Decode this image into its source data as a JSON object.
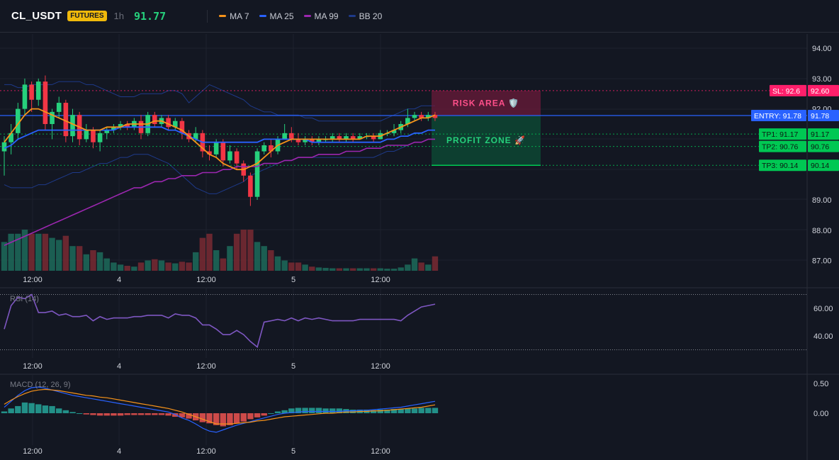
{
  "header": {
    "symbol": "CL_USDT",
    "badge": "FUTURES",
    "timeframe": "1h",
    "last_price": "91.77",
    "legend": [
      {
        "label": "MA 7",
        "color": "#f7931a"
      },
      {
        "label": "MA 25",
        "color": "#2962ff"
      },
      {
        "label": "MA 99",
        "color": "#9c27b0"
      },
      {
        "label": "BB 20",
        "color": "#1e3a8a"
      }
    ]
  },
  "colors": {
    "bg": "#131722",
    "up": "#26d07c",
    "down": "#f23645",
    "grid": "#1e222d",
    "sl": "#ff1f6b",
    "entry": "#2962ff",
    "tp": "#00c853",
    "rsi": "#7e57c2",
    "macd": "#2962ff",
    "signal": "#f7931a"
  },
  "levels": {
    "sl": {
      "value": 92.6,
      "tag": "SL: 92.6",
      "axis": "92.60"
    },
    "entry": {
      "value": 91.78,
      "tag": "ENTRY: 91.78",
      "axis": "91.78"
    },
    "tp": [
      {
        "value": 91.17,
        "tag": "TP1: 91.17",
        "axis": "91.17"
      },
      {
        "value": 90.76,
        "tag": "TP2: 90.76",
        "axis": "90.76"
      },
      {
        "value": 90.14,
        "tag": "TP3: 90.14",
        "axis": "90.14"
      }
    ]
  },
  "zones": {
    "risk_label": "RISK AREA 🛡️",
    "profit_label": "PROFIT ZONE 🚀"
  },
  "rsi": {
    "title": "RSI (14)",
    "ticks": [
      "60.00",
      "40.00"
    ]
  },
  "macd": {
    "title": "MACD (12, 26, 9)",
    "ticks": [
      "0.50",
      "0.00"
    ]
  },
  "chart_data": {
    "type": "candlestick",
    "time_ticks": [
      "12:00",
      "4",
      "12:00",
      "5",
      "12:00"
    ],
    "price_ticks": [
      "94.00",
      "93.00",
      "92.00",
      "89.00",
      "88.00",
      "87.00"
    ],
    "ylim": [
      86.8,
      94.3
    ],
    "candles": [
      [
        90.6,
        90.9,
        89.8,
        91.1
      ],
      [
        90.9,
        91.2,
        90.5,
        91.5
      ],
      [
        91.2,
        92.0,
        91.0,
        92.2
      ],
      [
        92.0,
        92.8,
        91.8,
        93.0
      ],
      [
        92.8,
        92.3,
        91.9,
        92.9
      ],
      [
        92.3,
        92.9,
        92.1,
        93.0
      ],
      [
        92.9,
        91.5,
        91.3,
        93.1
      ],
      [
        91.5,
        91.9,
        91.0,
        92.0
      ],
      [
        91.9,
        92.2,
        91.7,
        92.4
      ],
      [
        92.2,
        91.1,
        90.9,
        92.3
      ],
      [
        91.1,
        91.8,
        90.9,
        92.0
      ],
      [
        91.8,
        91.0,
        90.8,
        91.9
      ],
      [
        91.0,
        91.3,
        90.9,
        91.5
      ],
      [
        91.3,
        90.9,
        90.7,
        91.4
      ],
      [
        90.9,
        91.2,
        90.6,
        91.3
      ],
      [
        91.2,
        91.3,
        91.0,
        91.4
      ],
      [
        91.3,
        91.4,
        91.2,
        91.5
      ],
      [
        91.4,
        91.5,
        91.3,
        91.6
      ],
      [
        91.5,
        91.4,
        91.3,
        91.6
      ],
      [
        91.4,
        91.6,
        91.3,
        91.7
      ],
      [
        91.6,
        91.2,
        91.0,
        91.8
      ],
      [
        91.2,
        91.8,
        91.1,
        91.9
      ],
      [
        91.8,
        91.5,
        91.4,
        91.9
      ],
      [
        91.5,
        91.7,
        91.4,
        91.8
      ],
      [
        91.7,
        91.4,
        91.3,
        91.8
      ],
      [
        91.4,
        91.6,
        91.3,
        91.7
      ],
      [
        91.6,
        91.2,
        91.0,
        91.7
      ],
      [
        91.2,
        91.0,
        90.9,
        91.3
      ],
      [
        91.0,
        91.2,
        90.9,
        91.4
      ],
      [
        91.2,
        90.6,
        90.4,
        91.3
      ],
      [
        90.6,
        90.5,
        90.3,
        90.8
      ],
      [
        90.5,
        90.9,
        90.4,
        91.0
      ],
      [
        90.9,
        90.3,
        90.1,
        91.0
      ],
      [
        90.3,
        90.6,
        90.2,
        90.8
      ],
      [
        90.6,
        90.2,
        90.0,
        90.7
      ],
      [
        90.2,
        89.8,
        89.6,
        90.3
      ],
      [
        89.8,
        89.1,
        88.8,
        89.9
      ],
      [
        89.1,
        90.6,
        89.0,
        90.7
      ],
      [
        90.6,
        90.8,
        90.5,
        90.9
      ],
      [
        90.8,
        90.6,
        90.4,
        91.0
      ],
      [
        90.6,
        91.0,
        90.5,
        91.1
      ],
      [
        91.0,
        91.2,
        91.0,
        91.5
      ],
      [
        91.2,
        91.0,
        90.9,
        91.4
      ],
      [
        91.0,
        90.9,
        90.8,
        91.2
      ],
      [
        90.9,
        91.0,
        90.8,
        91.1
      ],
      [
        91.0,
        90.9,
        90.8,
        91.1
      ],
      [
        90.9,
        91.0,
        90.8,
        91.1
      ],
      [
        91.0,
        91.0,
        90.9,
        91.1
      ],
      [
        91.0,
        91.1,
        90.9,
        91.2
      ],
      [
        91.1,
        91.0,
        90.9,
        91.2
      ],
      [
        91.0,
        91.1,
        90.9,
        91.2
      ],
      [
        91.1,
        91.0,
        90.9,
        91.2
      ],
      [
        91.0,
        91.1,
        91.0,
        91.2
      ],
      [
        91.1,
        91.1,
        91.0,
        91.2
      ],
      [
        91.1,
        91.0,
        90.9,
        91.2
      ],
      [
        91.0,
        91.2,
        91.0,
        91.3
      ],
      [
        91.2,
        91.2,
        91.1,
        91.3
      ],
      [
        91.2,
        91.3,
        91.1,
        91.5
      ],
      [
        91.3,
        91.5,
        91.2,
        91.6
      ],
      [
        91.5,
        91.7,
        91.4,
        92.0
      ],
      [
        91.7,
        91.8,
        91.6,
        91.9
      ],
      [
        91.8,
        91.7,
        91.6,
        91.9
      ],
      [
        91.7,
        91.8,
        91.6,
        91.9
      ],
      [
        91.8,
        91.7,
        91.6,
        91.9
      ]
    ],
    "volume": [
      0.7,
      0.9,
      0.9,
      1.0,
      0.9,
      0.9,
      0.9,
      0.8,
      0.75,
      0.85,
      0.6,
      0.6,
      0.4,
      0.5,
      0.45,
      0.3,
      0.2,
      0.15,
      0.12,
      0.1,
      0.2,
      0.25,
      0.28,
      0.25,
      0.2,
      0.18,
      0.22,
      0.2,
      0.45,
      0.8,
      0.9,
      0.5,
      0.3,
      0.6,
      0.9,
      1.0,
      1.0,
      0.7,
      0.6,
      0.5,
      0.35,
      0.25,
      0.2,
      0.2,
      0.15,
      0.1,
      0.08,
      0.07,
      0.06,
      0.06,
      0.06,
      0.06,
      0.06,
      0.06,
      0.06,
      0.06,
      0.05,
      0.05,
      0.08,
      0.15,
      0.3,
      0.2,
      0.15,
      0.35
    ],
    "ma7": [
      90.9,
      91.2,
      91.5,
      91.8,
      92.0,
      92.0,
      91.9,
      91.8,
      91.7,
      91.6,
      91.5,
      91.4,
      91.3,
      91.3,
      91.3,
      91.4,
      91.4,
      91.4,
      91.5,
      91.5,
      91.5,
      91.5,
      91.6,
      91.6,
      91.5,
      91.4,
      91.3,
      91.1,
      90.9,
      90.7,
      90.5,
      90.4,
      90.2,
      90.1,
      90.0,
      90.0,
      90.1,
      90.2,
      90.4,
      90.6,
      90.8,
      90.9,
      91.0,
      91.0,
      91.0,
      91.0,
      91.0,
      91.0,
      91.0,
      91.0,
      91.0,
      91.0,
      91.0,
      91.1,
      91.1,
      91.1,
      91.2,
      91.3,
      91.4,
      91.5,
      91.6,
      91.7,
      91.7,
      91.8
    ],
    "ma25": [
      90.7,
      90.8,
      91.0,
      91.1,
      91.2,
      91.3,
      91.3,
      91.3,
      91.3,
      91.3,
      91.3,
      91.3,
      91.3,
      91.3,
      91.3,
      91.3,
      91.3,
      91.4,
      91.4,
      91.4,
      91.4,
      91.4,
      91.4,
      91.4,
      91.3,
      91.3,
      91.2,
      91.1,
      91.0,
      90.9,
      90.9,
      90.9,
      90.9,
      90.9,
      90.9,
      90.9,
      90.9,
      90.9,
      91.0,
      91.0,
      91.0,
      91.0,
      91.0,
      91.0,
      91.0,
      90.9,
      90.9,
      90.9,
      90.9,
      90.9,
      90.9,
      90.9,
      90.9,
      90.9,
      90.9,
      90.9,
      91.0,
      91.0,
      91.1,
      91.1,
      91.2,
      91.2,
      91.3,
      91.3
    ],
    "ma99": [
      87.5,
      87.6,
      87.7,
      87.8,
      87.9,
      88.0,
      88.1,
      88.2,
      88.3,
      88.4,
      88.5,
      88.6,
      88.7,
      88.8,
      88.9,
      89.0,
      89.1,
      89.2,
      89.3,
      89.4,
      89.4,
      89.5,
      89.6,
      89.6,
      89.7,
      89.7,
      89.8,
      89.8,
      89.8,
      89.9,
      89.9,
      89.9,
      90.0,
      90.0,
      90.1,
      90.1,
      90.1,
      90.1,
      90.2,
      90.2,
      90.2,
      90.3,
      90.3,
      90.4,
      90.4,
      90.4,
      90.5,
      90.5,
      90.5,
      90.5,
      90.6,
      90.6,
      90.6,
      90.7,
      90.7,
      90.7,
      90.8,
      90.8,
      90.8,
      90.8,
      90.9,
      90.9,
      91.0,
      91.0
    ],
    "bb_upper": [
      92.8,
      92.8,
      92.7,
      92.7,
      92.8,
      92.8,
      92.8,
      92.8,
      92.9,
      92.9,
      92.9,
      92.9,
      92.8,
      92.8,
      92.7,
      92.6,
      92.5,
      92.4,
      92.4,
      92.4,
      92.5,
      92.5,
      92.5,
      92.5,
      92.6,
      92.6,
      92.5,
      92.2,
      92.4,
      92.6,
      92.8,
      92.7,
      92.6,
      92.5,
      92.4,
      92.3,
      92.1,
      92.0,
      91.9,
      91.9,
      91.8,
      91.8,
      91.8,
      91.8,
      91.7,
      91.7,
      91.6,
      91.6,
      91.6,
      91.6,
      91.6,
      91.6,
      91.6,
      91.6,
      91.6,
      91.6,
      91.7,
      91.8,
      91.9,
      92.0,
      92.0,
      92.1,
      92.1,
      92.1
    ],
    "bb_lower": [
      89.5,
      89.4,
      89.4,
      89.4,
      89.4,
      89.5,
      89.5,
      89.6,
      89.7,
      89.8,
      89.9,
      89.9,
      90.0,
      90.1,
      90.2,
      90.2,
      90.3,
      90.4,
      90.4,
      90.5,
      90.5,
      90.5,
      90.4,
      90.3,
      90.2,
      90.0,
      89.8,
      89.6,
      89.4,
      89.3,
      89.2,
      89.2,
      89.3,
      89.4,
      89.5,
      89.6,
      89.8,
      89.9,
      90.0,
      90.1,
      90.2,
      90.3,
      90.3,
      90.4,
      90.4,
      90.4,
      90.4,
      90.4,
      90.4,
      90.4,
      90.4,
      90.4,
      90.4,
      90.4,
      90.4,
      90.5,
      90.6,
      90.6,
      90.7,
      90.8,
      90.9,
      90.9,
      91.0,
      91.0
    ],
    "rsi": [
      45,
      62,
      68,
      67,
      70,
      57,
      57,
      58,
      55,
      56,
      54,
      54,
      55,
      51,
      54,
      52,
      53,
      53,
      53,
      54,
      54,
      55,
      55,
      55,
      53,
      56,
      55,
      55,
      53,
      48,
      48,
      45,
      41,
      41,
      44,
      41,
      36,
      32,
      50,
      51,
      52,
      51,
      53,
      51,
      53,
      52,
      53,
      52,
      51,
      51,
      51,
      51,
      52,
      52,
      52,
      52,
      52,
      52,
      51,
      55,
      58,
      61,
      62,
      63
    ],
    "macd_hist": [
      0.03,
      0.08,
      0.12,
      0.18,
      0.17,
      0.15,
      0.13,
      0.12,
      0.08,
      0.05,
      0.02,
      0.0,
      -0.02,
      -0.03,
      -0.04,
      -0.04,
      -0.04,
      -0.04,
      -0.03,
      -0.03,
      -0.03,
      -0.03,
      -0.03,
      -0.03,
      -0.04,
      -0.06,
      -0.07,
      -0.09,
      -0.12,
      -0.15,
      -0.17,
      -0.2,
      -0.22,
      -0.2,
      -0.17,
      -0.14,
      -0.1,
      -0.07,
      -0.04,
      0.0,
      0.03,
      0.05,
      0.08,
      0.09,
      0.09,
      0.09,
      0.09,
      0.08,
      0.08,
      0.08,
      0.07,
      0.06,
      0.06,
      0.06,
      0.05,
      0.06,
      0.06,
      0.07,
      0.07,
      0.08,
      0.08,
      0.09,
      0.09,
      0.09
    ],
    "macd_line": [
      0.1,
      0.2,
      0.3,
      0.38,
      0.43,
      0.44,
      0.42,
      0.39,
      0.36,
      0.33,
      0.3,
      0.28,
      0.26,
      0.24,
      0.22,
      0.2,
      0.18,
      0.16,
      0.14,
      0.12,
      0.1,
      0.08,
      0.06,
      0.04,
      0.02,
      -0.02,
      -0.08,
      -0.12,
      -0.18,
      -0.25,
      -0.3,
      -0.32,
      -0.28,
      -0.24,
      -0.2,
      -0.17,
      -0.14,
      -0.11,
      -0.08,
      -0.05,
      -0.02,
      0.0,
      0.01,
      0.02,
      0.03,
      0.03,
      0.03,
      0.03,
      0.03,
      0.03,
      0.04,
      0.04,
      0.05,
      0.05,
      0.06,
      0.07,
      0.08,
      0.09,
      0.1,
      0.12,
      0.14,
      0.16,
      0.18,
      0.2
    ],
    "signal_line": [
      0.15,
      0.22,
      0.28,
      0.33,
      0.37,
      0.39,
      0.4,
      0.39,
      0.38,
      0.36,
      0.34,
      0.32,
      0.3,
      0.29,
      0.27,
      0.26,
      0.24,
      0.22,
      0.2,
      0.18,
      0.16,
      0.14,
      0.12,
      0.1,
      0.08,
      0.05,
      0.02,
      -0.02,
      -0.06,
      -0.1,
      -0.14,
      -0.18,
      -0.18,
      -0.18,
      -0.17,
      -0.16,
      -0.15,
      -0.13,
      -0.12,
      -0.1,
      -0.08,
      -0.06,
      -0.05,
      -0.04,
      -0.03,
      -0.02,
      -0.01,
      0.0,
      0.0,
      0.01,
      0.02,
      0.02,
      0.03,
      0.03,
      0.04,
      0.04,
      0.05,
      0.06,
      0.07,
      0.08,
      0.09,
      0.1,
      0.12,
      0.14
    ]
  }
}
